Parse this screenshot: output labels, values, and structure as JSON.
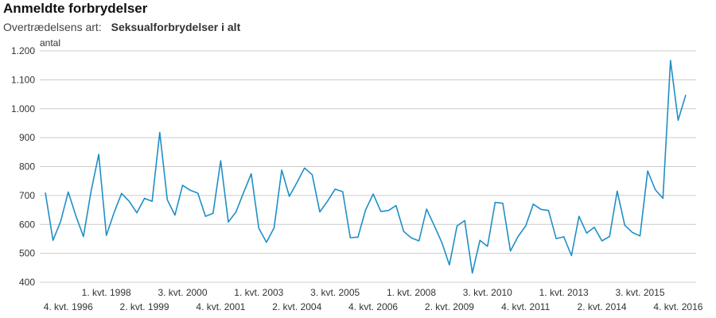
{
  "header": {
    "title": "Anmeldte forbrydelser",
    "subtitle_label": "Overtrædelsens art:",
    "subtitle_value": "Seksualforbrydelser i alt"
  },
  "chart_data": {
    "type": "line",
    "title": "Anmeldte forbrydelser",
    "ylabel": "antal",
    "xlabel": "",
    "ylim": [
      400,
      1200
    ],
    "yticks": [
      400,
      500,
      600,
      700,
      800,
      900,
      1000,
      1100,
      1200
    ],
    "ytick_labels": [
      "400",
      "500",
      "600",
      "700",
      "800",
      "900",
      "1.000",
      "1.100",
      "1.200"
    ],
    "grid": true,
    "color": "#1f8fc6",
    "x_ticks": [
      {
        "index": 3,
        "label": "4. kvt. 1996",
        "row": 2
      },
      {
        "index": 8,
        "label": "1. kvt. 1998",
        "row": 1
      },
      {
        "index": 13,
        "label": "2. kvt. 1999",
        "row": 2
      },
      {
        "index": 18,
        "label": "3. kvt. 2000",
        "row": 1
      },
      {
        "index": 23,
        "label": "4. kvt. 2001",
        "row": 2
      },
      {
        "index": 28,
        "label": "1. kvt. 2003",
        "row": 1
      },
      {
        "index": 33,
        "label": "2. kvt. 2004",
        "row": 2
      },
      {
        "index": 38,
        "label": "3. kvt. 2005",
        "row": 1
      },
      {
        "index": 43,
        "label": "4. kvt. 2006",
        "row": 2
      },
      {
        "index": 48,
        "label": "1. kvt. 2008",
        "row": 1
      },
      {
        "index": 53,
        "label": "2. kvt. 2009",
        "row": 2
      },
      {
        "index": 58,
        "label": "3. kvt. 2010",
        "row": 1
      },
      {
        "index": 63,
        "label": "4. kvt. 2011",
        "row": 2
      },
      {
        "index": 68,
        "label": "1. kvt. 2013",
        "row": 1
      },
      {
        "index": 73,
        "label": "2. kvt. 2014",
        "row": 2
      },
      {
        "index": 78,
        "label": "3. kvt. 2015",
        "row": 1
      },
      {
        "index": 83,
        "label": "4. kvt. 2016",
        "row": 2
      }
    ],
    "series": [
      {
        "values": [
          710,
          545,
          610,
          712,
          630,
          558,
          715,
          842,
          562,
          640,
          707,
          680,
          640,
          690,
          680,
          918,
          685,
          632,
          735,
          718,
          708,
          628,
          638,
          820,
          608,
          643,
          710,
          775,
          587,
          538,
          588,
          788,
          697,
          745,
          795,
          772,
          643,
          680,
          722,
          713,
          554,
          556,
          650,
          705,
          645,
          648,
          665,
          576,
          553,
          543,
          653,
          596,
          538,
          460,
          595,
          613,
          432,
          545,
          524,
          676,
          673,
          508,
          558,
          595,
          670,
          652,
          648,
          551,
          557,
          492,
          628,
          570,
          590,
          543,
          558,
          715,
          597,
          572,
          560,
          785,
          720,
          690,
          1167,
          960,
          1048
        ]
      }
    ]
  }
}
